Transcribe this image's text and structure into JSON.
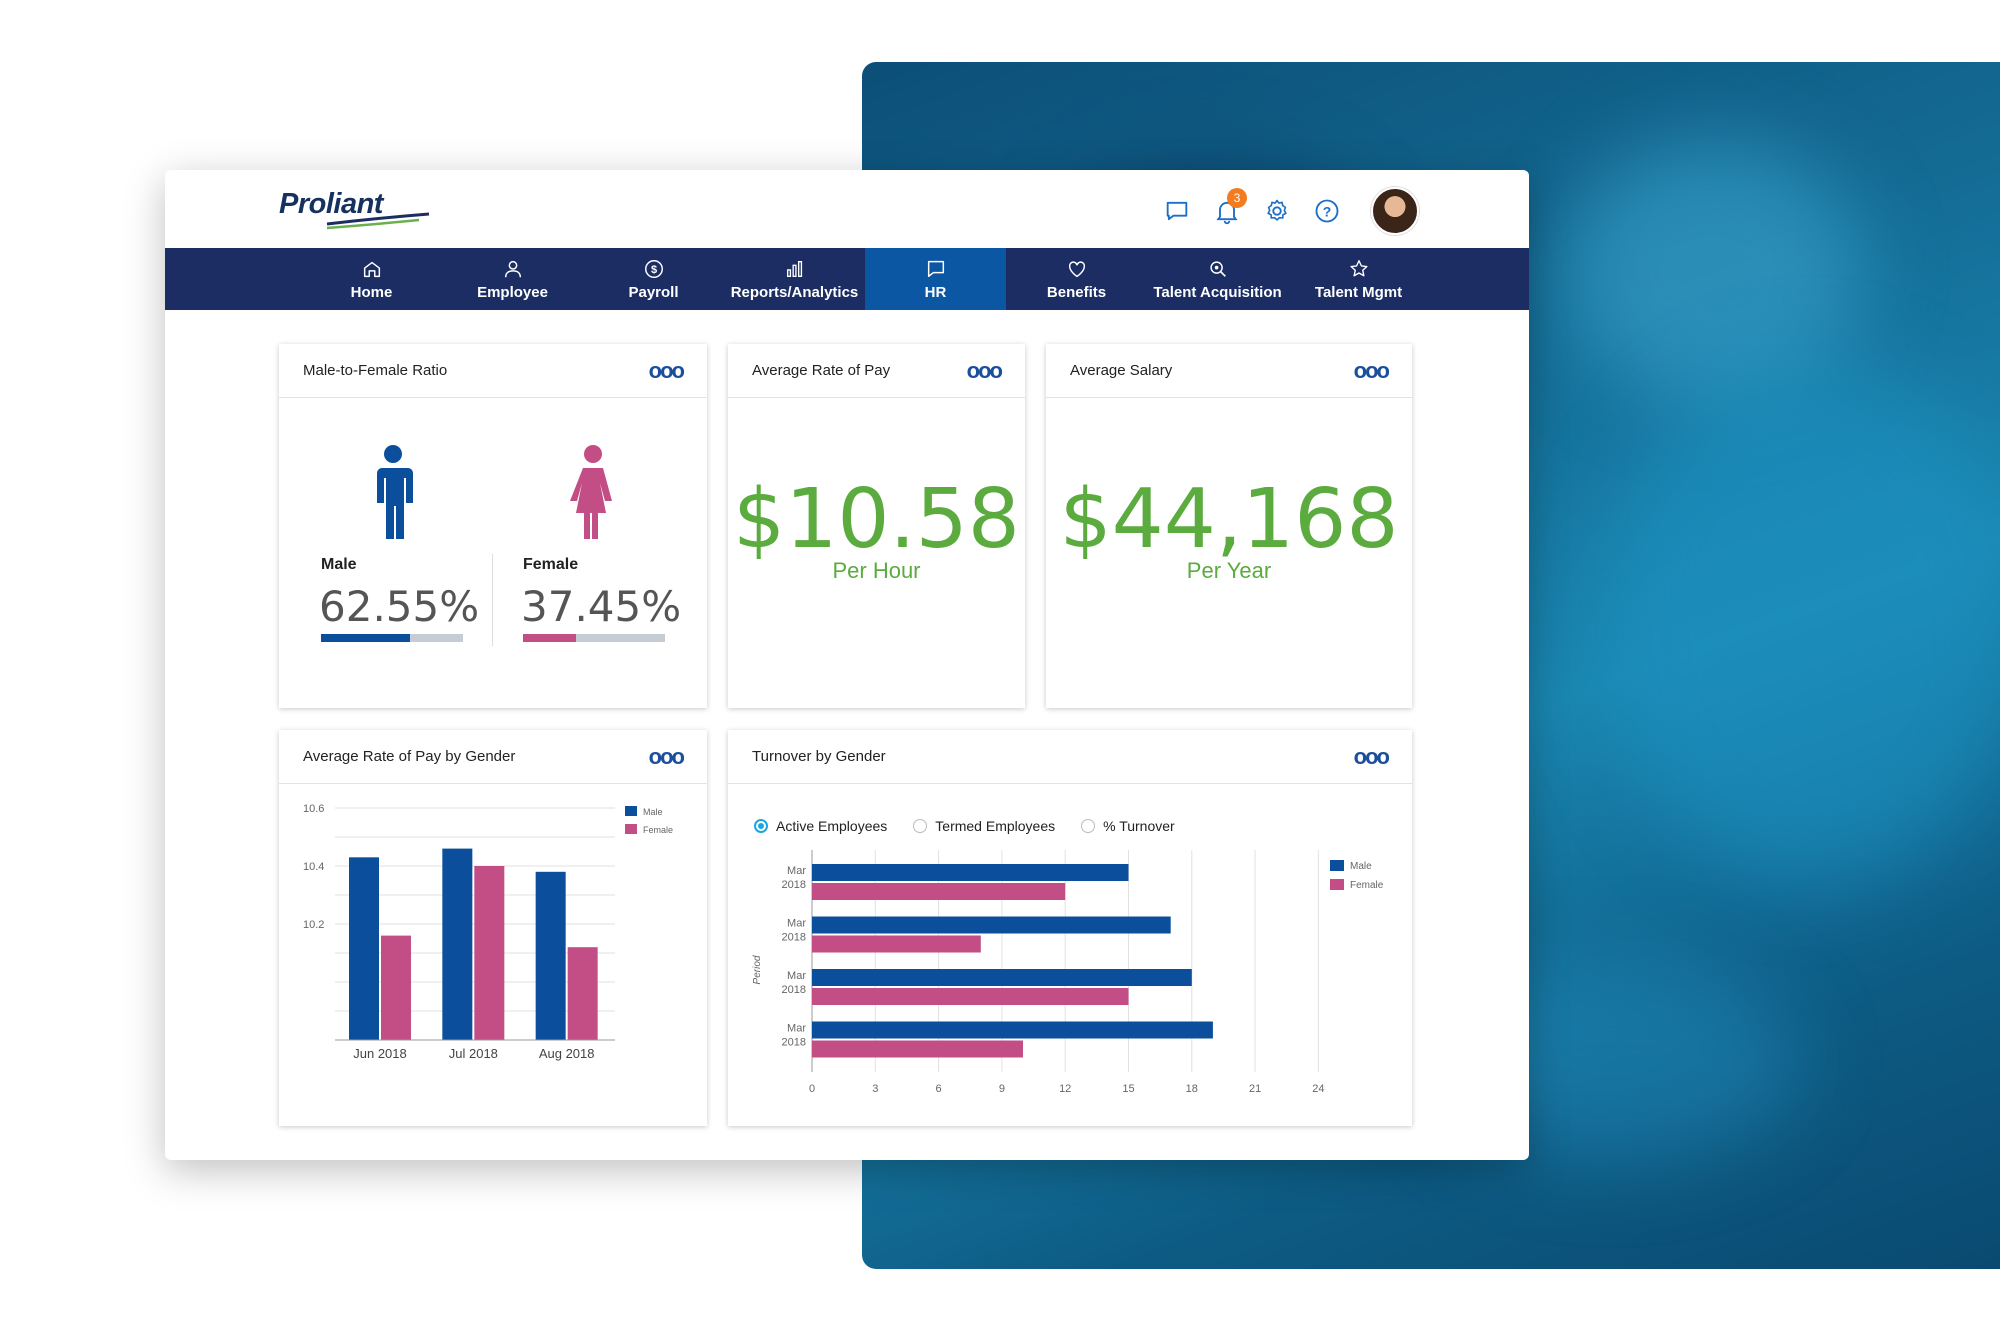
{
  "brand": {
    "name": "Proliant"
  },
  "header": {
    "icons": [
      "chat-icon",
      "bell-icon",
      "gear-icon",
      "help-icon"
    ],
    "notification_count": "3"
  },
  "nav": {
    "items": [
      {
        "label": "Home",
        "icon": "home-icon"
      },
      {
        "label": "Employee",
        "icon": "user-icon"
      },
      {
        "label": "Payroll",
        "icon": "dollar-icon"
      },
      {
        "label": "Reports/Analytics",
        "icon": "bar-chart-icon"
      },
      {
        "label": "HR",
        "icon": "message-icon",
        "active": true
      },
      {
        "label": "Benefits",
        "icon": "heart-icon"
      },
      {
        "label": "Talent Acquisition",
        "icon": "search-icon"
      },
      {
        "label": "Talent Mgmt",
        "icon": "star-icon"
      }
    ]
  },
  "cards": {
    "ratio": {
      "title": "Male-to-Female Ratio",
      "male": {
        "label": "Male",
        "value": "62.55%",
        "fraction": 0.6255
      },
      "female": {
        "label": "Female",
        "value": "37.45%",
        "fraction": 0.3745
      }
    },
    "rate": {
      "title": "Average Rate of Pay",
      "value": "$10.58",
      "unit": "Per Hour"
    },
    "salary": {
      "title": "Average Salary",
      "value": "$44,168",
      "unit": "Per Year"
    },
    "rate_by_gender": {
      "title": "Average Rate of Pay by Gender"
    },
    "turnover": {
      "title": "Turnover by Gender",
      "options": [
        {
          "label": "Active Employees",
          "selected": true
        },
        {
          "label": "Termed Employees",
          "selected": false
        },
        {
          "label": "% Turnover",
          "selected": false
        }
      ]
    }
  },
  "colors": {
    "male": "#0b4f9c",
    "female": "#c24e85",
    "accent_green": "#5bab3f",
    "nav": "#1b2d63",
    "nav_active": "#0b57a4"
  },
  "chart_data": [
    {
      "type": "bar",
      "title": "Average Rate of Pay by Gender",
      "categories": [
        "Jun 2018",
        "Jul 2018",
        "Aug 2018"
      ],
      "series": [
        {
          "name": "Male",
          "values": [
            10.43,
            10.46,
            10.38
          ]
        },
        {
          "name": "Female",
          "values": [
            10.16,
            10.4,
            10.12
          ]
        }
      ],
      "yticks": [
        "10.6",
        "10.4",
        "10.2"
      ],
      "ylim": [
        9.8,
        10.6
      ],
      "legend": "top-right",
      "grid": true
    },
    {
      "type": "bar",
      "orientation": "horizontal",
      "title": "Turnover by Gender",
      "ylabel": "Period",
      "categories": [
        "Mar 2018",
        "Mar 2018",
        "Mar 2018",
        "Mar 2018"
      ],
      "series": [
        {
          "name": "Male",
          "values": [
            15,
            17,
            18,
            19
          ]
        },
        {
          "name": "Female",
          "values": [
            12,
            8,
            15,
            10
          ]
        }
      ],
      "xticks": [
        "0",
        "3",
        "6",
        "9",
        "12",
        "15",
        "18",
        "21",
        "24"
      ],
      "xlim": [
        0,
        24
      ],
      "legend": "top-right",
      "grid": true
    }
  ]
}
